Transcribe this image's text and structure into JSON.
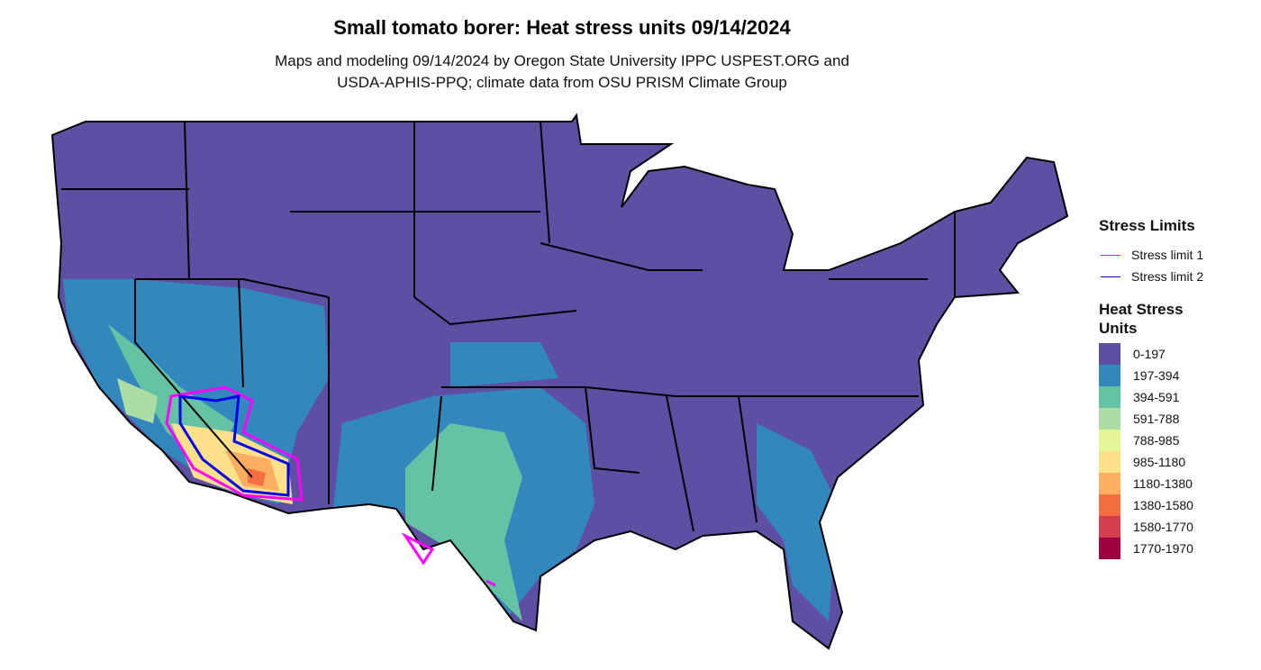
{
  "title": "Small tomato borer: Heat stress units 09/14/2024",
  "subtitle_line1": "Maps and modeling 09/14/2024 by Oregon State University IPPC USPEST.ORG and",
  "subtitle_line2": "USDA-APHIS-PPQ; climate data from OSU PRISM Climate Group",
  "legend": {
    "stress_title": "Stress Limits",
    "stress": [
      {
        "label": "Stress limit 1",
        "color": "#FF00FF"
      },
      {
        "label": "Stress limit 2",
        "color": "#0000CC"
      }
    ],
    "heat_title_1": "Heat Stress",
    "heat_title_2": "Units",
    "bins": [
      {
        "label": "0-197",
        "color": "#5E4FA2"
      },
      {
        "label": "197-394",
        "color": "#3288BD"
      },
      {
        "label": "394-591",
        "color": "#66C2A5"
      },
      {
        "label": "591-788",
        "color": "#ABDDA4"
      },
      {
        "label": "788-985",
        "color": "#E6F598"
      },
      {
        "label": "985-1180",
        "color": "#FEE08B"
      },
      {
        "label": "1180-1380",
        "color": "#FDAE61"
      },
      {
        "label": "1380-1580",
        "color": "#F46D43"
      },
      {
        "label": "1580-1770",
        "color": "#D53E4F"
      },
      {
        "label": "1770-1970",
        "color": "#9E0142"
      }
    ]
  }
}
